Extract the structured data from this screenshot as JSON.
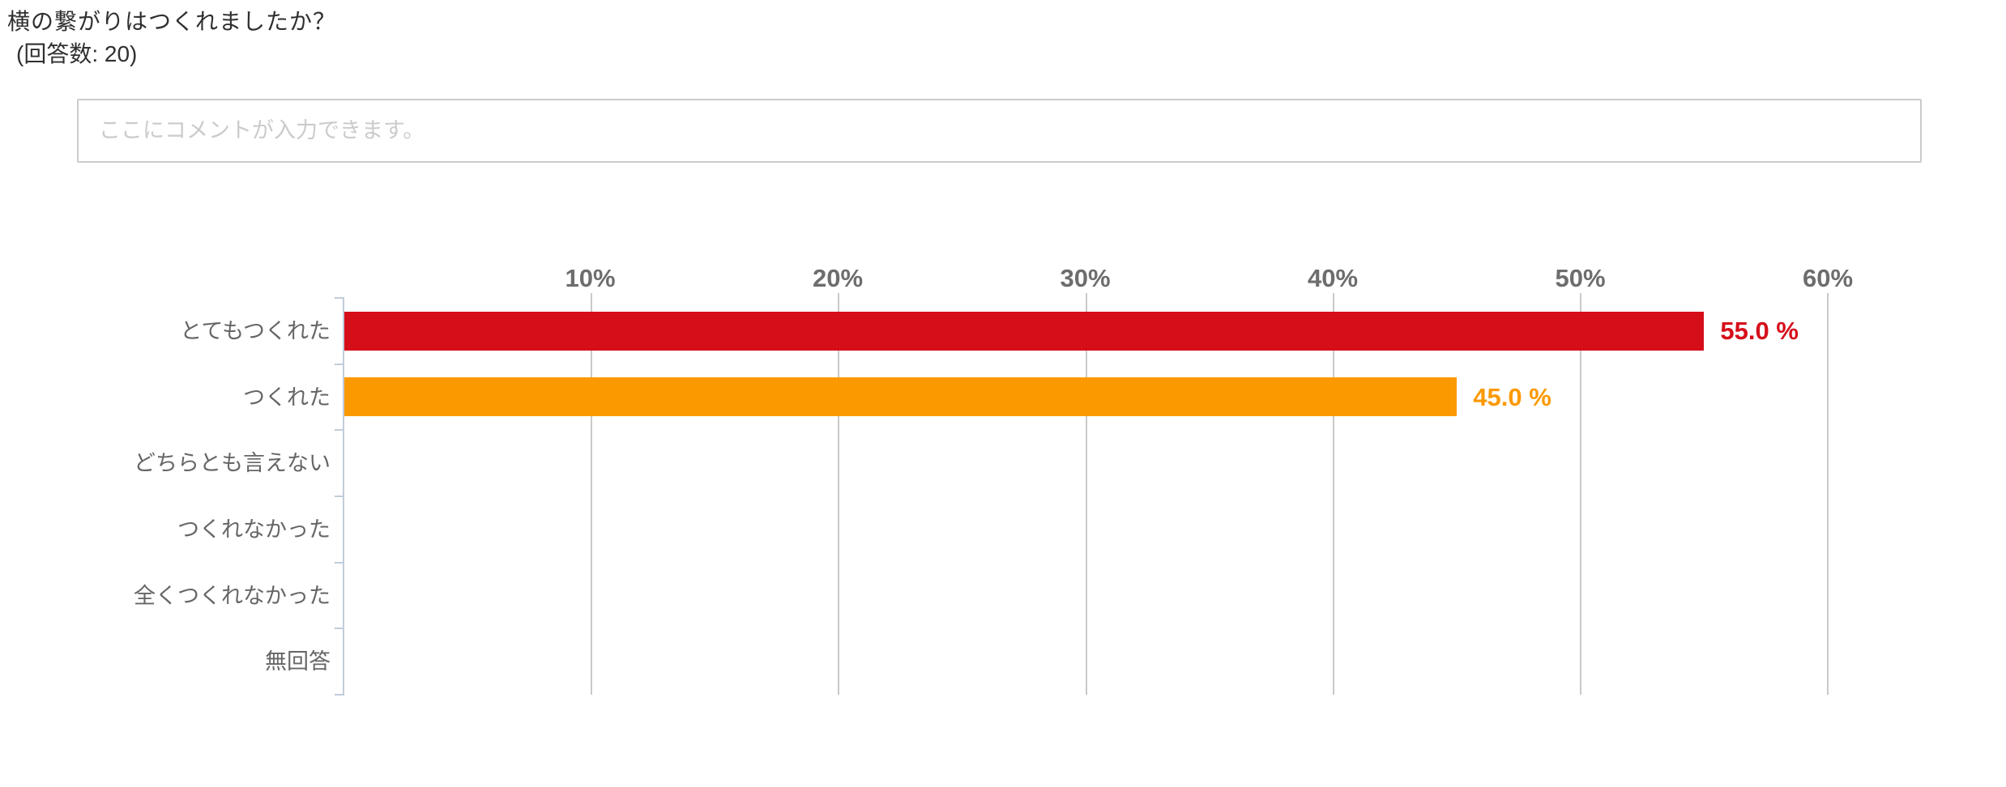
{
  "header": {
    "title": "横の繋がりはつくれましたか？",
    "response_count": "(回答数: 20)"
  },
  "comment": {
    "placeholder": "ここにコメントが入力できます。"
  },
  "chart_data": {
    "type": "bar",
    "orientation": "horizontal",
    "title": "横の繋がりはつくれましたか？",
    "subtitle": "(回答数: 20)",
    "categories": [
      "とてもつくれた",
      "つくれた",
      "どちらとも言えない",
      "つくれなかった",
      "全くつくれなかった",
      "無回答"
    ],
    "values": [
      55.0,
      45.0,
      0,
      0,
      0,
      0
    ],
    "value_labels": [
      "55.0 %",
      "45.0 %",
      "",
      "",
      "",
      ""
    ],
    "bar_colors": [
      "#d60e1a",
      "#fb9900",
      "",
      "",
      "",
      ""
    ],
    "x_ticks": [
      "10%",
      "20%",
      "30%",
      "40%",
      "50%",
      "60%"
    ],
    "x_tick_values": [
      10,
      20,
      30,
      40,
      50,
      60
    ],
    "xlim": [
      0,
      60
    ],
    "grid": "vertical-on",
    "legend": "none",
    "colors": {
      "gridline": "#c9c9c9",
      "axis_line": "#c0ccda",
      "tick_label": "#6d6d6d",
      "category_label": "#666666",
      "title_text": "#303030",
      "placeholder_text": "#cbcbcb",
      "input_border": "#cccccc"
    }
  }
}
